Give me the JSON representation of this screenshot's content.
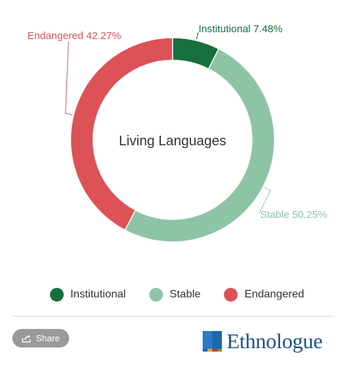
{
  "chart_data": {
    "type": "pie",
    "style": "donut",
    "center_label": "Living Languages",
    "slices": [
      {
        "name": "Institutional",
        "label": "Institutional 7.48%",
        "value": 7.48,
        "color": "#17703d"
      },
      {
        "name": "Stable",
        "label": "Stable 50.25%",
        "value": 50.25,
        "color": "#8ec4a6"
      },
      {
        "name": "Endangered",
        "label": "Endangered 42.27%",
        "value": 42.27,
        "color": "#dd5256"
      }
    ],
    "legend_position": "bottom"
  },
  "legend": {
    "items": [
      {
        "label": "Institutional",
        "color": "#17703d"
      },
      {
        "label": "Stable",
        "color": "#8ec4a6"
      },
      {
        "label": "Endangered",
        "color": "#dd5256"
      }
    ]
  },
  "footer": {
    "share_label": "Share",
    "brand_name": "Ethnologue"
  }
}
